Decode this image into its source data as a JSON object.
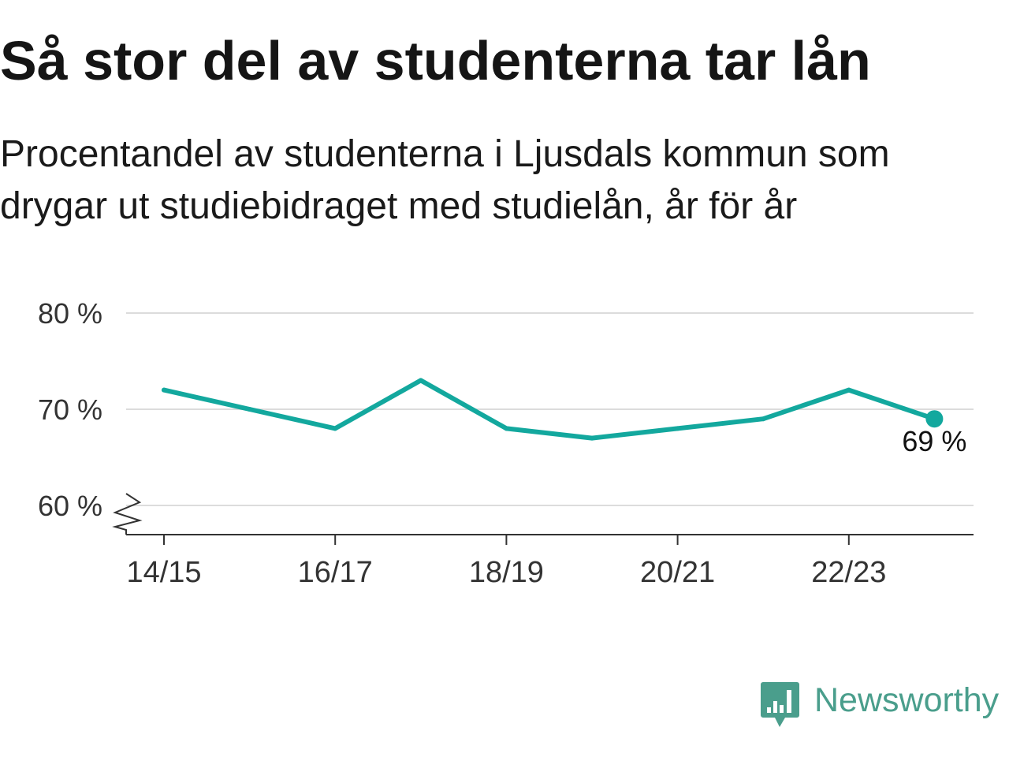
{
  "chart_data": {
    "type": "line",
    "title": "Så stor del av studenterna tar lån",
    "subtitle": "Procentandel av studenterna i Ljusdals kommun som drygar ut studiebidraget med studielån, år för år",
    "x_tick_labels": [
      "14/15",
      "16/17",
      "18/19",
      "20/21",
      "22/23"
    ],
    "y_ticks": [
      {
        "value": 80,
        "label": "80 %"
      },
      {
        "value": 70,
        "label": "70 %"
      },
      {
        "value": 60,
        "label": "60 %"
      }
    ],
    "ylim": [
      60,
      80
    ],
    "y_axis_break": true,
    "grid": true,
    "series": [
      {
        "values": [
          72,
          70,
          68,
          73,
          68,
          67,
          68,
          69,
          72,
          69
        ],
        "color": "#13a89e"
      }
    ],
    "end_label": "69 %"
  },
  "branding": {
    "logo_text": "Newsworthy",
    "logo_icon": "newsworthy-logo-icon",
    "color": "#4a9e8c"
  },
  "colors": {
    "title": "#151515",
    "grid": "#dcdcdc",
    "axis": "#333333",
    "tick_text": "#333333",
    "label_text": "#111111"
  }
}
